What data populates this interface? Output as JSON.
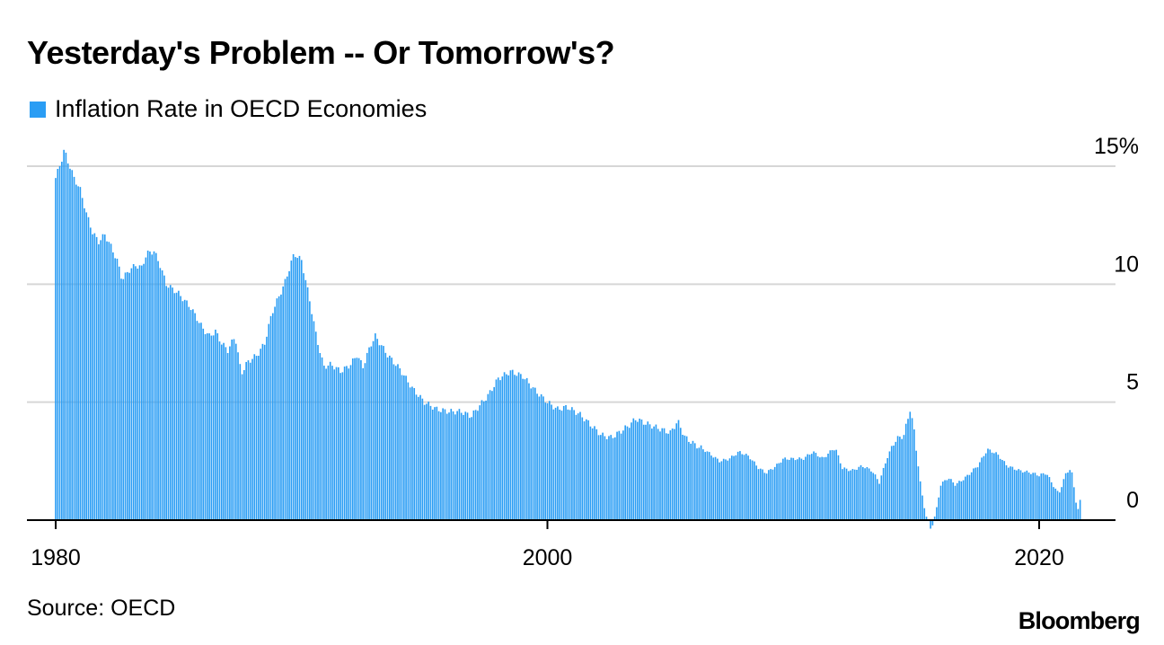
{
  "title": "Yesterday's Problem -- Or Tomorrow's?",
  "legend": {
    "label": "Inflation Rate in OECD Economies",
    "color": "#2a9df4"
  },
  "source": "Source: OECD",
  "brand": "Bloomberg",
  "colors": {
    "bar": "#2a9df4",
    "grid": "#d6d6d6",
    "axis": "#000000",
    "text": "#000000"
  },
  "chart_data": {
    "type": "bar",
    "title": "Yesterday's Problem -- Or Tomorrow's?",
    "series_name": "Inflation Rate in OECD Economies",
    "frequency": "monthly",
    "start_year": 1980,
    "xlabel": "",
    "ylabel": "",
    "x_ticks": [
      1980,
      2000,
      2020
    ],
    "x_tick_labels": [
      "1980",
      "2000",
      "2020"
    ],
    "ylim": [
      0,
      15
    ],
    "x_range": [
      1980,
      2021.7
    ],
    "y_ticks": [
      0,
      5,
      10,
      15
    ],
    "y_tick_labels": [
      "0",
      "5",
      "10",
      "15%"
    ],
    "grid": true,
    "anchors": [
      [
        1980.0,
        14.5
      ],
      [
        1980.25,
        15.3
      ],
      [
        1980.35,
        15.7
      ],
      [
        1980.5,
        15.2
      ],
      [
        1980.75,
        14.5
      ],
      [
        1981.0,
        14.0
      ],
      [
        1981.25,
        13.0
      ],
      [
        1981.5,
        12.2
      ],
      [
        1981.75,
        11.8
      ],
      [
        1982.0,
        12.1
      ],
      [
        1982.25,
        11.6
      ],
      [
        1982.5,
        11.0
      ],
      [
        1982.7,
        10.2
      ],
      [
        1983.0,
        10.6
      ],
      [
        1983.25,
        10.8
      ],
      [
        1983.5,
        10.7
      ],
      [
        1983.7,
        11.3
      ],
      [
        1984.0,
        11.4
      ],
      [
        1984.25,
        10.8
      ],
      [
        1984.5,
        10.0
      ],
      [
        1985.0,
        9.6
      ],
      [
        1985.5,
        9.0
      ],
      [
        1986.0,
        8.1
      ],
      [
        1986.25,
        7.8
      ],
      [
        1986.5,
        8.0
      ],
      [
        1986.75,
        7.5
      ],
      [
        1987.0,
        7.2
      ],
      [
        1987.3,
        7.8
      ],
      [
        1987.55,
        6.2
      ],
      [
        1987.8,
        6.7
      ],
      [
        1988.2,
        7.0
      ],
      [
        1988.5,
        7.5
      ],
      [
        1988.8,
        8.8
      ],
      [
        1989.3,
        10.0
      ],
      [
        1989.7,
        11.3
      ],
      [
        1990.0,
        11.0
      ],
      [
        1990.3,
        9.5
      ],
      [
        1990.6,
        7.8
      ],
      [
        1990.9,
        6.5
      ],
      [
        1991.2,
        6.6
      ],
      [
        1991.6,
        6.3
      ],
      [
        1992.0,
        6.6
      ],
      [
        1992.25,
        7.0
      ],
      [
        1992.5,
        6.5
      ],
      [
        1992.8,
        7.4
      ],
      [
        1993.0,
        7.8
      ],
      [
        1993.5,
        7.0
      ],
      [
        1994.0,
        6.4
      ],
      [
        1994.5,
        5.6
      ],
      [
        1995.0,
        5.0
      ],
      [
        1995.5,
        4.7
      ],
      [
        1996.0,
        4.6
      ],
      [
        1996.5,
        4.6
      ],
      [
        1996.9,
        4.4
      ],
      [
        1997.2,
        4.8
      ],
      [
        1997.6,
        5.3
      ],
      [
        1998.0,
        6.0
      ],
      [
        1998.5,
        6.3
      ],
      [
        1999.0,
        6.1
      ],
      [
        1999.5,
        5.5
      ],
      [
        2000.0,
        5.0
      ],
      [
        2000.4,
        4.7
      ],
      [
        2000.8,
        4.8
      ],
      [
        2001.3,
        4.5
      ],
      [
        2001.8,
        4.0
      ],
      [
        2002.2,
        3.6
      ],
      [
        2002.6,
        3.5
      ],
      [
        2002.9,
        3.7
      ],
      [
        2003.3,
        4.0
      ],
      [
        2003.6,
        4.3
      ],
      [
        2004.0,
        4.1
      ],
      [
        2004.5,
        3.9
      ],
      [
        2005.0,
        3.7
      ],
      [
        2005.3,
        4.2
      ],
      [
        2005.6,
        3.5
      ],
      [
        2006.0,
        3.2
      ],
      [
        2006.5,
        2.9
      ],
      [
        2007.0,
        2.5
      ],
      [
        2007.4,
        2.6
      ],
      [
        2007.8,
        2.9
      ],
      [
        2008.2,
        2.7
      ],
      [
        2008.6,
        2.2
      ],
      [
        2008.9,
        2.0
      ],
      [
        2009.3,
        2.3
      ],
      [
        2009.6,
        2.6
      ],
      [
        2010.0,
        2.6
      ],
      [
        2010.4,
        2.6
      ],
      [
        2010.8,
        2.9
      ],
      [
        2011.2,
        2.6
      ],
      [
        2011.7,
        3.1
      ],
      [
        2012.0,
        2.2
      ],
      [
        2012.4,
        2.1
      ],
      [
        2012.8,
        2.3
      ],
      [
        2013.2,
        2.1
      ],
      [
        2013.5,
        1.6
      ],
      [
        2013.8,
        2.6
      ],
      [
        2014.1,
        3.3
      ],
      [
        2014.3,
        3.5
      ],
      [
        2014.5,
        3.6
      ],
      [
        2014.75,
        4.7
      ],
      [
        2014.9,
        3.9
      ],
      [
        2015.2,
        1.3
      ],
      [
        2015.4,
        0.2
      ],
      [
        2015.6,
        -0.4
      ],
      [
        2015.8,
        0.3
      ],
      [
        2016.0,
        1.5
      ],
      [
        2016.3,
        1.8
      ],
      [
        2016.6,
        1.5
      ],
      [
        2017.0,
        1.8
      ],
      [
        2017.5,
        2.3
      ],
      [
        2017.9,
        3.0
      ],
      [
        2018.3,
        2.8
      ],
      [
        2018.7,
        2.3
      ],
      [
        2019.2,
        2.1
      ],
      [
        2019.7,
        2.0
      ],
      [
        2020.0,
        1.9
      ],
      [
        2020.3,
        2.0
      ],
      [
        2020.5,
        1.6
      ],
      [
        2020.8,
        1.1
      ],
      [
        2021.1,
        2.0
      ],
      [
        2021.3,
        2.2
      ],
      [
        2021.5,
        0.8
      ],
      [
        2021.6,
        0.4
      ],
      [
        2021.7,
        1.0
      ]
    ]
  }
}
